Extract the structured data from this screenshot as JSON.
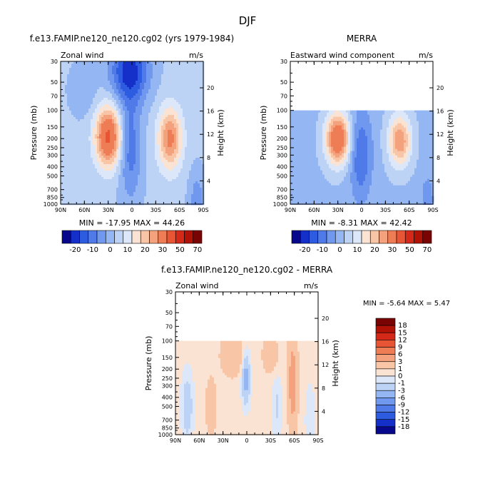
{
  "figure": {
    "title": "DJF"
  },
  "axis_common": {
    "x_ticks": [
      "90N",
      "60N",
      "30N",
      "0",
      "30S",
      "60S",
      "90S"
    ],
    "y_ticks": [
      "30",
      "50",
      "70",
      "100",
      "150",
      "200",
      "250",
      "300",
      "400",
      "500",
      "700",
      "850",
      "1000"
    ],
    "y_tick_values": [
      30,
      50,
      70,
      100,
      150,
      200,
      250,
      300,
      400,
      500,
      700,
      850,
      1000
    ],
    "height_ticks": [
      "4",
      "8",
      "12",
      "16",
      "20"
    ],
    "height_tick_values": [
      4,
      8,
      12,
      16,
      20
    ],
    "ylabel": "Pressure (mb)",
    "y2label": "Height (km)"
  },
  "chart_data": [
    {
      "id": "model",
      "type": "heatmap",
      "title": "f.e13.FAMIP.ne120_ne120.cg02 (yrs 1979-1984)",
      "left_label": "Zonal wind",
      "units": "m/s",
      "stats": "MIN = -17.95   MAX =  44.26",
      "min": -17.95,
      "max": 44.26,
      "xlim": [
        90,
        -90
      ],
      "ylim": [
        30,
        1000
      ],
      "y_scale": "log",
      "features": [
        {
          "lat": 30,
          "p": 200,
          "value": 44
        },
        {
          "lat": -48,
          "p": 200,
          "value": 32
        },
        {
          "lat": 2,
          "p": 40,
          "value": -18
        }
      ]
    },
    {
      "id": "merra",
      "type": "heatmap",
      "title": "MERRA",
      "left_label": "Eastward wind component",
      "units": "m/s",
      "stats": "MIN =  -8.31   MAX =  42.42",
      "min": -8.31,
      "max": 42.42,
      "xlim": [
        90,
        -90
      ],
      "ylim": [
        30,
        1000
      ],
      "y_scale": "log",
      "data_top_p": 100,
      "features": [
        {
          "lat": 30,
          "p": 200,
          "value": 42
        },
        {
          "lat": -48,
          "p": 200,
          "value": 31
        },
        {
          "lat": 0,
          "p": 150,
          "value": -8
        }
      ]
    },
    {
      "id": "diff",
      "type": "heatmap",
      "title": "f.e13.FAMIP.ne120_ne120.cg02 - MERRA",
      "left_label": "Zonal wind",
      "units": "m/s",
      "stats": "MIN =  -5.64   MAX =   5.47",
      "min": -5.64,
      "max": 5.47,
      "xlim": [
        90,
        -90
      ],
      "ylim": [
        30,
        1000
      ],
      "y_scale": "log",
      "data_top_p": 100,
      "features": [
        {
          "lat": -58,
          "p": 300,
          "value": 5.5
        },
        {
          "lat": 0,
          "p": 250,
          "value": -5.6
        },
        {
          "lat": 75,
          "p": 600,
          "value": -3
        }
      ]
    }
  ],
  "colorbar_main": {
    "labels": [
      "-20",
      "-10",
      "0",
      "10",
      "20",
      "30",
      "50",
      "70"
    ],
    "colors": [
      "#08088c",
      "#1530c8",
      "#2d5ce0",
      "#4f7ae8",
      "#6f98ee",
      "#94b6f2",
      "#bcd3f6",
      "#dce8fa",
      "#fbe3d3",
      "#f8c6a6",
      "#f4a27d",
      "#ee7d55",
      "#e85534",
      "#d42818",
      "#b01206",
      "#7a0404"
    ]
  },
  "colorbar_diff": {
    "labels": [
      "18",
      "15",
      "12",
      "9",
      "6",
      "3",
      "1",
      "0",
      "-1",
      "-3",
      "-6",
      "-9",
      "-12",
      "-15",
      "-18"
    ],
    "colors": [
      "#7a0404",
      "#b01206",
      "#d42818",
      "#e85534",
      "#ee7d55",
      "#f4a27d",
      "#f8c6a6",
      "#fbe3d3",
      "#dce8fa",
      "#bcd3f6",
      "#94b6f2",
      "#6f98ee",
      "#4f7ae8",
      "#2d5ce0",
      "#1530c8",
      "#08088c"
    ]
  }
}
